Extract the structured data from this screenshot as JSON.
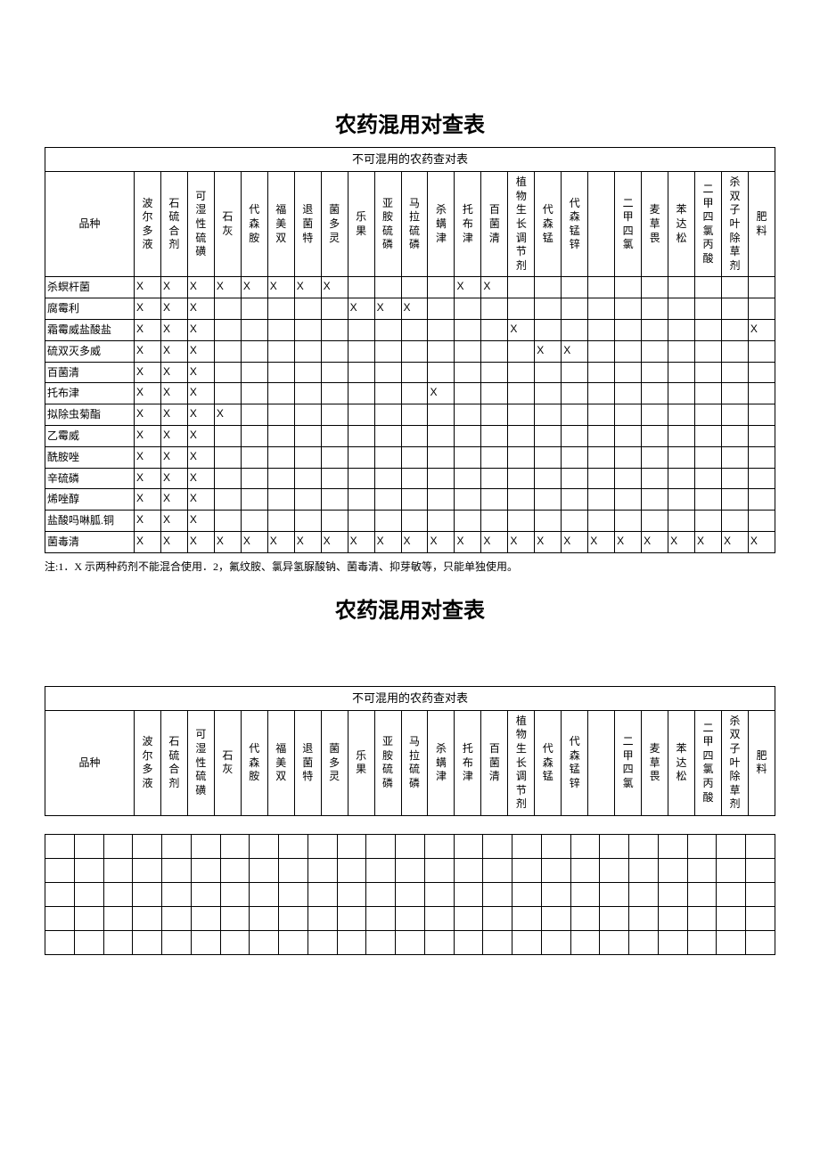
{
  "title": "农药混用对查表",
  "caption": "不可混用的农药查对表",
  "header_first": "品种",
  "columns": [
    "波尔多液",
    "石硫合剂",
    "可湿性硫磺",
    "石灰",
    "代森胺",
    "福美双",
    "退菌特",
    "菌多灵",
    "乐果",
    "亚胺硫磷",
    "马拉硫磷",
    "杀螨津",
    "托布津",
    "百菌清",
    "植物生长调节剂",
    "代森锰",
    "代森锰锌",
    "",
    "二甲四氯",
    "麦草畏",
    "苯达松",
    "二甲四氯丙酸",
    "杀双子叶除草剂",
    "肥料"
  ],
  "mark": "X",
  "rows": [
    {
      "name": "杀螟杆菌",
      "cells": [
        1,
        1,
        1,
        1,
        1,
        1,
        1,
        1,
        0,
        0,
        0,
        0,
        1,
        1,
        0,
        0,
        0,
        0,
        0,
        0,
        0,
        0,
        0,
        0
      ]
    },
    {
      "name": "腐霉利",
      "cells": [
        1,
        1,
        1,
        0,
        0,
        0,
        0,
        0,
        1,
        1,
        1,
        0,
        0,
        0,
        0,
        0,
        0,
        0,
        0,
        0,
        0,
        0,
        0,
        0
      ]
    },
    {
      "name": "霜霉威盐酸盐",
      "cells": [
        1,
        1,
        1,
        0,
        0,
        0,
        0,
        0,
        0,
        0,
        0,
        0,
        0,
        0,
        1,
        0,
        0,
        0,
        0,
        0,
        0,
        0,
        0,
        1
      ]
    },
    {
      "name": "硫双灭多威",
      "cells": [
        1,
        1,
        1,
        0,
        0,
        0,
        0,
        0,
        0,
        0,
        0,
        0,
        0,
        0,
        0,
        1,
        1,
        0,
        0,
        0,
        0,
        0,
        0,
        0
      ]
    },
    {
      "name": "百菌清",
      "cells": [
        1,
        1,
        1,
        0,
        0,
        0,
        0,
        0,
        0,
        0,
        0,
        0,
        0,
        0,
        0,
        0,
        0,
        0,
        0,
        0,
        0,
        0,
        0,
        0
      ]
    },
    {
      "name": "托布津",
      "cells": [
        1,
        1,
        1,
        0,
        0,
        0,
        0,
        0,
        0,
        0,
        0,
        1,
        0,
        0,
        0,
        0,
        0,
        0,
        0,
        0,
        0,
        0,
        0,
        0
      ]
    },
    {
      "name": "拟除虫菊酯",
      "cells": [
        1,
        1,
        1,
        1,
        0,
        0,
        0,
        0,
        0,
        0,
        0,
        0,
        0,
        0,
        0,
        0,
        0,
        0,
        0,
        0,
        0,
        0,
        0,
        0
      ]
    },
    {
      "name": "乙霉威",
      "cells": [
        1,
        1,
        1,
        0,
        0,
        0,
        0,
        0,
        0,
        0,
        0,
        0,
        0,
        0,
        0,
        0,
        0,
        0,
        0,
        0,
        0,
        0,
        0,
        0
      ]
    },
    {
      "name": "酰胺唑",
      "cells": [
        1,
        1,
        1,
        0,
        0,
        0,
        0,
        0,
        0,
        0,
        0,
        0,
        0,
        0,
        0,
        0,
        0,
        0,
        0,
        0,
        0,
        0,
        0,
        0
      ]
    },
    {
      "name": "辛硫磷",
      "cells": [
        1,
        1,
        1,
        0,
        0,
        0,
        0,
        0,
        0,
        0,
        0,
        0,
        0,
        0,
        0,
        0,
        0,
        0,
        0,
        0,
        0,
        0,
        0,
        0
      ]
    },
    {
      "name": "烯唑醇",
      "cells": [
        1,
        1,
        1,
        0,
        0,
        0,
        0,
        0,
        0,
        0,
        0,
        0,
        0,
        0,
        0,
        0,
        0,
        0,
        0,
        0,
        0,
        0,
        0,
        0
      ]
    },
    {
      "name": "盐酸吗啉胍.铜",
      "cells": [
        1,
        1,
        1,
        0,
        0,
        0,
        0,
        0,
        0,
        0,
        0,
        0,
        0,
        0,
        0,
        0,
        0,
        0,
        0,
        0,
        0,
        0,
        0,
        0
      ]
    },
    {
      "name": "菌毒清",
      "cells": [
        1,
        1,
        1,
        1,
        1,
        1,
        1,
        1,
        1,
        1,
        1,
        1,
        1,
        1,
        1,
        1,
        1,
        1,
        1,
        1,
        1,
        1,
        1,
        1
      ]
    }
  ],
  "note": "注:1．X 示两种药剂不能混合使用．2，氟纹胺、氯异氢脲酸钠、菌毒清、抑芽敏等，只能单独使用。",
  "empty_col_count": 25,
  "empty_row_count": 5
}
